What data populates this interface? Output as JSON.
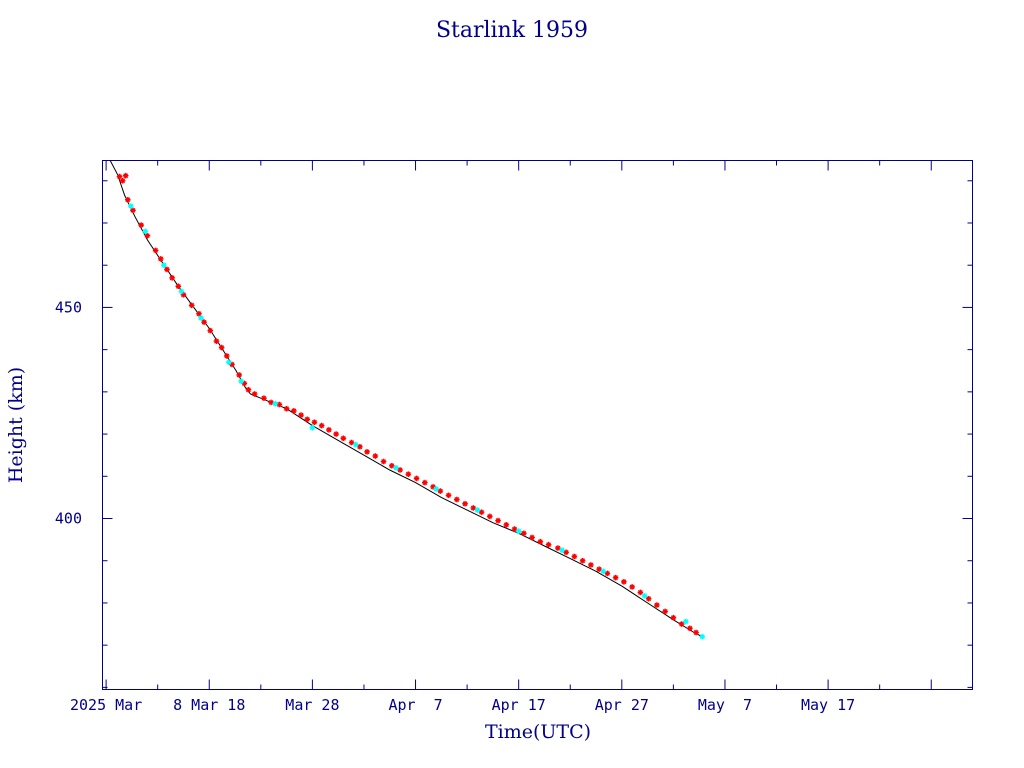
{
  "chart_data": {
    "type": "scatter",
    "title": "Starlink 1959",
    "xlabel": "Time(UTC)",
    "ylabel": "Height (km)",
    "xlim": [
      -0.35,
      84.0
    ],
    "ylim": [
      359.5,
      484.8
    ],
    "x_ticks": [
      {
        "x": 0,
        "label": "2025 Mar"
      },
      {
        "x": 10,
        "label": "8 Mar 18"
      },
      {
        "x": 20,
        "label": "Mar 28"
      },
      {
        "x": 30,
        "label": "Apr  7"
      },
      {
        "x": 40,
        "label": "Apr 17"
      },
      {
        "x": 50,
        "label": "Apr 27"
      },
      {
        "x": 60,
        "label": "May  7"
      },
      {
        "x": 70,
        "label": "May 17"
      }
    ],
    "y_ticks": [
      {
        "y": 400,
        "label": "400"
      },
      {
        "y": 450,
        "label": "450"
      }
    ],
    "grid": false,
    "colors": {
      "frame": "#00008b",
      "points_main": "#ff0000",
      "points_alt": "#00ffff",
      "trend": "#000000"
    },
    "trend_line": {
      "x": [
        0.4,
        1.1,
        1.8,
        2.8,
        4.0,
        5.5,
        7.0,
        8.5,
        10.0,
        11.3,
        12.6,
        13.5,
        14.0,
        15.0,
        17.5,
        20.0,
        22.5,
        25.0,
        27.5,
        30.0,
        32.5,
        35.0,
        37.5,
        40.0,
        42.5,
        45.0,
        47.5,
        50.0,
        52.5,
        55.0,
        57.0,
        57.8
      ],
      "y": [
        484.8,
        481.5,
        476.5,
        471.5,
        466.0,
        460.5,
        455.0,
        450.0,
        445.0,
        440.0,
        435.0,
        431.0,
        429.5,
        428.5,
        426.0,
        422.0,
        418.5,
        415.0,
        411.5,
        408.5,
        405.0,
        402.0,
        399.0,
        396.5,
        393.5,
        390.5,
        387.5,
        384.0,
        380.0,
        376.0,
        373.0,
        372.0
      ]
    },
    "series": [
      {
        "color": "#ff0000",
        "x": [
          1.3,
          1.6,
          1.9,
          2.1,
          2.6,
          3.4,
          4.0,
          4.8,
          5.3,
          5.9,
          6.4,
          7.0,
          7.5,
          8.3,
          9.0,
          9.5,
          10.1,
          10.7,
          11.2,
          11.7,
          12.2,
          12.9,
          13.4,
          13.8,
          14.4,
          15.3,
          16.0,
          16.8,
          17.5,
          18.2,
          18.9,
          19.5,
          20.2,
          20.9,
          21.6,
          22.3,
          23.0,
          23.8,
          24.6,
          25.3,
          26.1,
          26.9,
          27.7,
          28.5,
          29.3,
          30.1,
          30.9,
          31.7,
          32.4,
          33.2,
          34.0,
          34.8,
          35.6,
          36.4,
          37.2,
          38.0,
          38.8,
          39.6,
          40.5,
          41.3,
          42.1,
          42.9,
          43.8,
          44.6,
          45.4,
          46.2,
          47.0,
          47.8,
          48.6,
          49.4,
          50.2,
          51.0,
          51.8,
          52.6,
          53.4,
          54.2,
          55.0,
          55.8,
          56.6,
          57.2
        ],
        "y": [
          481.0,
          480.0,
          481.2,
          475.5,
          473.0,
          469.5,
          467.0,
          463.5,
          461.5,
          459.0,
          457.0,
          455.0,
          453.0,
          450.5,
          448.5,
          446.5,
          444.5,
          442.0,
          440.5,
          438.5,
          436.5,
          434.0,
          432.0,
          430.5,
          429.5,
          428.5,
          427.5,
          427.0,
          426.0,
          425.5,
          424.5,
          423.5,
          422.8,
          422.0,
          421.0,
          420.0,
          419.0,
          418.0,
          417.0,
          415.8,
          414.8,
          413.5,
          412.5,
          411.5,
          410.5,
          409.5,
          408.5,
          407.5,
          406.5,
          405.5,
          404.5,
          403.5,
          402.5,
          401.5,
          400.5,
          399.5,
          398.5,
          397.5,
          396.5,
          395.5,
          394.5,
          393.8,
          393.0,
          392.0,
          391.0,
          390.0,
          389.0,
          388.0,
          387.0,
          386.0,
          385.0,
          383.8,
          382.5,
          381.0,
          379.5,
          378.0,
          376.5,
          375.0,
          374.0,
          373.0
        ]
      },
      {
        "color": "#00ffff",
        "x": [
          2.4,
          3.8,
          5.6,
          7.3,
          9.2,
          11.9,
          13.1,
          16.4,
          20.0,
          24.2,
          28.1,
          32.0,
          36.0,
          40.0,
          44.2,
          48.2,
          52.2,
          56.2,
          57.8
        ],
        "y": [
          474.0,
          468.0,
          460.0,
          453.8,
          447.5,
          437.0,
          432.5,
          427.2,
          421.5,
          417.5,
          412.0,
          407.0,
          402.0,
          397.0,
          392.5,
          387.5,
          381.7,
          375.6,
          372.0
        ]
      }
    ]
  }
}
